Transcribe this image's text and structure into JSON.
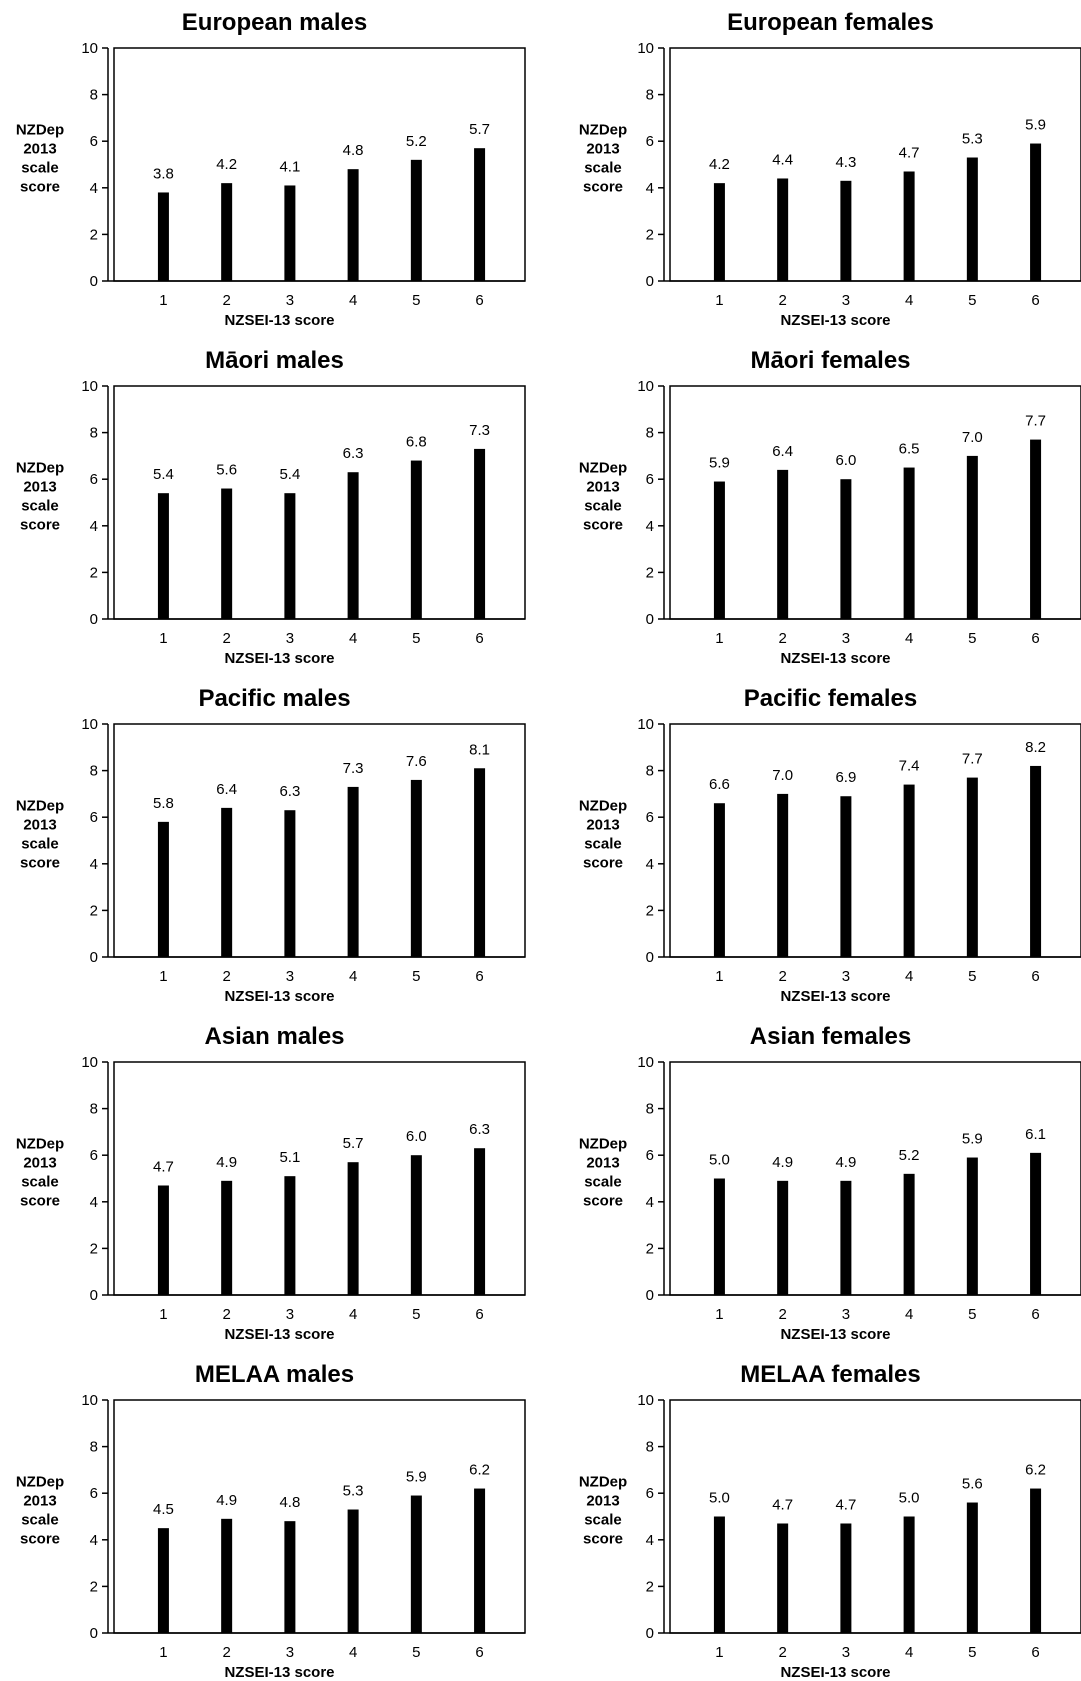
{
  "chart_data": [
    {
      "type": "bar",
      "title": "European males",
      "xlabel": "NZSEI-13 score",
      "ylabel": "NZDep 2013 scale score",
      "categories": [
        "1",
        "2",
        "3",
        "4",
        "5",
        "6"
      ],
      "values": [
        3.8,
        4.2,
        4.1,
        4.8,
        5.2,
        5.7
      ],
      "labels": [
        "3.8",
        "4.2",
        "4.1",
        "4.8",
        "5.2",
        "5.7"
      ],
      "ylim": [
        0,
        10
      ],
      "yticks": [
        "0",
        "2",
        "4",
        "6",
        "8",
        "10"
      ],
      "bar_color": "#000000",
      "grid": false
    },
    {
      "type": "bar",
      "title": "European females",
      "xlabel": "NZSEI-13 score",
      "ylabel": "NZDep 2013 scale score",
      "categories": [
        "1",
        "2",
        "3",
        "4",
        "5",
        "6"
      ],
      "values": [
        4.2,
        4.4,
        4.3,
        4.7,
        5.3,
        5.9
      ],
      "labels": [
        "4.2",
        "4.4",
        "4.3",
        "4.7",
        "5.3",
        "5.9"
      ],
      "ylim": [
        0,
        10
      ],
      "yticks": [
        "0",
        "2",
        "4",
        "6",
        "8",
        "10"
      ],
      "bar_color": "#000000",
      "grid": false
    },
    {
      "type": "bar",
      "title": "Māori males",
      "xlabel": "NZSEI-13 score",
      "ylabel": "NZDep 2013 scale score",
      "categories": [
        "1",
        "2",
        "3",
        "4",
        "5",
        "6"
      ],
      "values": [
        5.4,
        5.6,
        5.4,
        6.3,
        6.8,
        7.3
      ],
      "labels": [
        "5.4",
        "5.6",
        "5.4",
        "6.3",
        "6.8",
        "7.3"
      ],
      "ylim": [
        0,
        10
      ],
      "yticks": [
        "0",
        "2",
        "4",
        "6",
        "8",
        "10"
      ],
      "bar_color": "#000000",
      "grid": false
    },
    {
      "type": "bar",
      "title": "Māori females",
      "xlabel": "NZSEI-13 score",
      "ylabel": "NZDep 2013 scale score",
      "categories": [
        "1",
        "2",
        "3",
        "4",
        "5",
        "6"
      ],
      "values": [
        5.9,
        6.4,
        6.0,
        6.5,
        7.0,
        7.7
      ],
      "labels": [
        "5.9",
        "6.4",
        "6.0",
        "6.5",
        "7.0",
        "7.7"
      ],
      "ylim": [
        0,
        10
      ],
      "yticks": [
        "0",
        "2",
        "4",
        "6",
        "8",
        "10"
      ],
      "bar_color": "#000000",
      "grid": false
    },
    {
      "type": "bar",
      "title": "Pacific males",
      "xlabel": "NZSEI-13 score",
      "ylabel": "NZDep 2013 scale score",
      "categories": [
        "1",
        "2",
        "3",
        "4",
        "5",
        "6"
      ],
      "values": [
        5.8,
        6.4,
        6.3,
        7.3,
        7.6,
        8.1
      ],
      "labels": [
        "5.8",
        "6.4",
        "6.3",
        "7.3",
        "7.6",
        "8.1"
      ],
      "ylim": [
        0,
        10
      ],
      "yticks": [
        "0",
        "2",
        "4",
        "6",
        "8",
        "10"
      ],
      "bar_color": "#000000",
      "grid": false
    },
    {
      "type": "bar",
      "title": "Pacific females",
      "xlabel": "NZSEI-13 score",
      "ylabel": "NZDep 2013 scale score",
      "categories": [
        "1",
        "2",
        "3",
        "4",
        "5",
        "6"
      ],
      "values": [
        6.6,
        7.0,
        6.9,
        7.4,
        7.7,
        8.2
      ],
      "labels": [
        "6.6",
        "7.0",
        "6.9",
        "7.4",
        "7.7",
        "8.2"
      ],
      "ylim": [
        0,
        10
      ],
      "yticks": [
        "0",
        "2",
        "4",
        "6",
        "8",
        "10"
      ],
      "bar_color": "#000000",
      "grid": false
    },
    {
      "type": "bar",
      "title": "Asian males",
      "xlabel": "NZSEI-13 score",
      "ylabel": "NZDep 2013 scale score",
      "categories": [
        "1",
        "2",
        "3",
        "4",
        "5",
        "6"
      ],
      "values": [
        4.7,
        4.9,
        5.1,
        5.7,
        6.0,
        6.3
      ],
      "labels": [
        "4.7",
        "4.9",
        "5.1",
        "5.7",
        "6.0",
        "6.3"
      ],
      "ylim": [
        0,
        10
      ],
      "yticks": [
        "0",
        "2",
        "4",
        "6",
        "8",
        "10"
      ],
      "bar_color": "#000000",
      "grid": false
    },
    {
      "type": "bar",
      "title": "Asian females",
      "xlabel": "NZSEI-13 score",
      "ylabel": "NZDep 2013 scale score",
      "categories": [
        "1",
        "2",
        "3",
        "4",
        "5",
        "6"
      ],
      "values": [
        5.0,
        4.9,
        4.9,
        5.2,
        5.9,
        6.1
      ],
      "labels": [
        "5.0",
        "4.9",
        "4.9",
        "5.2",
        "5.9",
        "6.1"
      ],
      "ylim": [
        0,
        10
      ],
      "yticks": [
        "0",
        "2",
        "4",
        "6",
        "8",
        "10"
      ],
      "bar_color": "#000000",
      "grid": false
    },
    {
      "type": "bar",
      "title": "MELAA males",
      "xlabel": "NZSEI-13 score",
      "ylabel": "NZDep 2013 scale score",
      "categories": [
        "1",
        "2",
        "3",
        "4",
        "5",
        "6"
      ],
      "values": [
        4.5,
        4.9,
        4.8,
        5.3,
        5.9,
        6.2
      ],
      "labels": [
        "4.5",
        "4.9",
        "4.8",
        "5.3",
        "5.9",
        "6.2"
      ],
      "ylim": [
        0,
        10
      ],
      "yticks": [
        "0",
        "2",
        "4",
        "6",
        "8",
        "10"
      ],
      "bar_color": "#000000",
      "grid": false
    },
    {
      "type": "bar",
      "title": "MELAA females",
      "xlabel": "NZSEI-13 score",
      "ylabel": "NZDep 2013 scale score",
      "categories": [
        "1",
        "2",
        "3",
        "4",
        "5",
        "6"
      ],
      "values": [
        5.0,
        4.7,
        4.7,
        5.0,
        5.6,
        6.2
      ],
      "labels": [
        "5.0",
        "4.7",
        "4.7",
        "5.0",
        "5.6",
        "6.2"
      ],
      "ylim": [
        0,
        10
      ],
      "yticks": [
        "0",
        "2",
        "4",
        "6",
        "8",
        "10"
      ],
      "bar_color": "#000000",
      "grid": false
    }
  ]
}
